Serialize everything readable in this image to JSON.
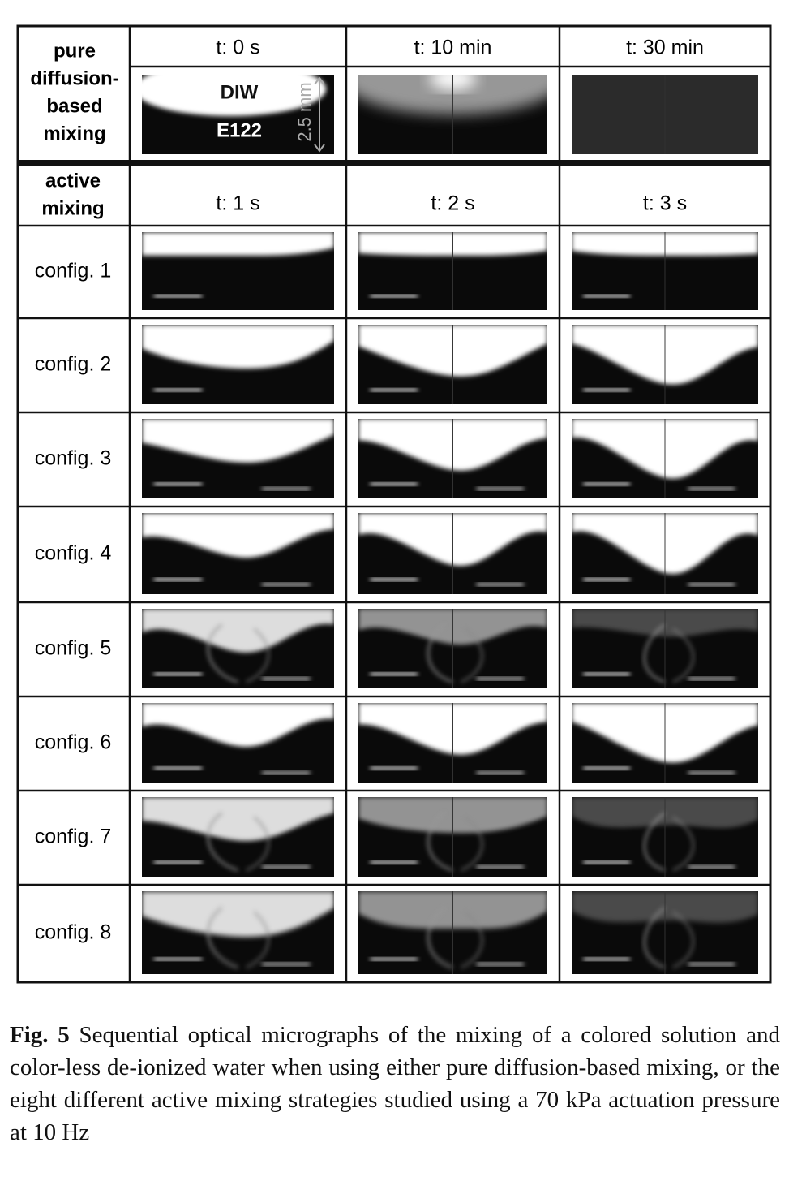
{
  "figure": {
    "diffusion": {
      "label": [
        "pure",
        "diffusion-",
        "based",
        "mixing"
      ],
      "times": [
        "t: 0 s",
        "t: 10 min",
        "t: 30 min"
      ],
      "annotations": {
        "top": "DIW",
        "bottom": "E122",
        "scale": "2.5 mm"
      }
    },
    "active": {
      "label": [
        "active",
        "mixing"
      ],
      "times": [
        "t: 1 s",
        "t: 2 s",
        "t: 3 s"
      ],
      "configs": [
        "config. 1",
        "config. 2",
        "config. 3",
        "config. 4",
        "config. 5",
        "config. 6",
        "config. 7",
        "config. 8"
      ]
    }
  },
  "caption": {
    "label": "Fig. 5",
    "text": "Sequential optical micrographs of the mixing of a colored solution and color-less de-ionized water when using either pure diffusion-based mixing, or the eight different active mixing strategies studied using a 70 kPa actuation pressure at 10 Hz"
  }
}
